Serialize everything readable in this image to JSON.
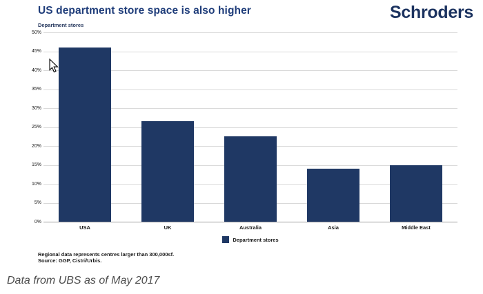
{
  "figure": {
    "title": "US department store space is also higher",
    "brand": "Schroders",
    "subtitle": "Department stores",
    "legend_label": "Department stores",
    "footnote_line1": "Regional data represents centres larger than 300,000sf.",
    "footnote_line2": "Source: GGP, Cistri/Urbis."
  },
  "caption": "Data from UBS as of May 2017",
  "colors": {
    "bar": "#1f3864",
    "title": "#1f3d7a",
    "brand": "#1c3360",
    "gridline": "#d9d9d9",
    "axis_line": "#9a9a9a",
    "caption_text": "#4d4d4d"
  },
  "chart_data": {
    "type": "bar",
    "title": "US department store space is also higher",
    "ylabel": "Department stores",
    "xlabel": "",
    "categories": [
      "USA",
      "UK",
      "Australia",
      "Asia",
      "Middle East"
    ],
    "series": [
      {
        "name": "Department stores",
        "values": [
          46,
          26.5,
          22.5,
          14,
          15
        ]
      }
    ],
    "ylim": [
      0,
      50
    ],
    "yticks": [
      0,
      5,
      10,
      15,
      20,
      25,
      30,
      35,
      40,
      45,
      50
    ],
    "ytick_suffix": "%",
    "grid": true,
    "legend_position": "bottom",
    "bar_color": "#1f3864"
  }
}
